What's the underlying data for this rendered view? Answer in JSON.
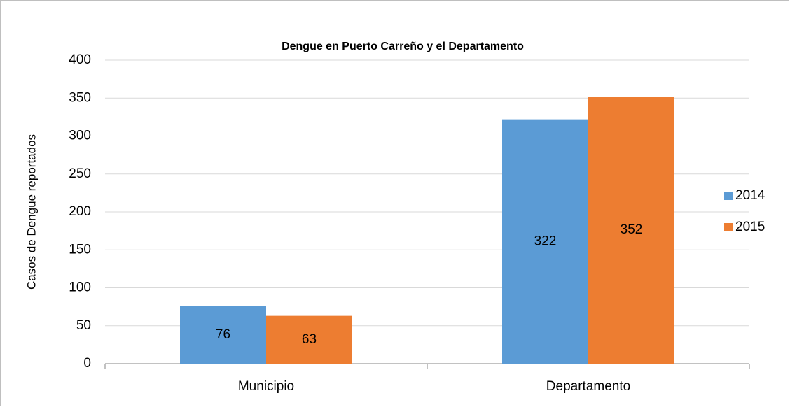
{
  "chart_data": {
    "type": "bar",
    "title": "Dengue en Puerto Carreño y el Departamento",
    "y_label": "Casos de Dengue reportados",
    "categories": [
      "Municipio",
      "Departamento"
    ],
    "series": [
      {
        "name": "2014",
        "color": "#5b9bd5",
        "values": [
          76,
          322
        ]
      },
      {
        "name": "2015",
        "color": "#ed7d31",
        "values": [
          63,
          352
        ]
      }
    ],
    "ylim": [
      0,
      400
    ],
    "yticks": [
      0,
      50,
      100,
      150,
      200,
      250,
      300,
      350,
      400
    ],
    "grid": true,
    "legend": "right"
  }
}
